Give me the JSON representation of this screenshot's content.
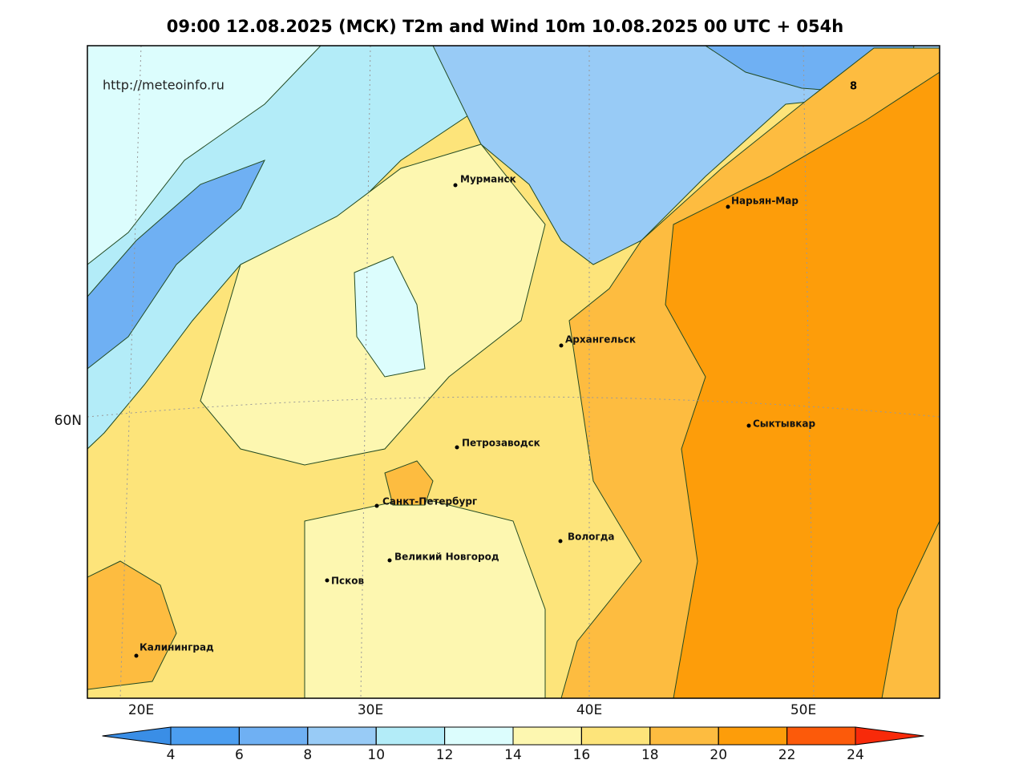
{
  "title": "09:00 12.08.2025 (МСК) T2m and Wind 10m 10.08.2025 00 UTC + 054h",
  "watermark": "http://meteoinfo.ru",
  "map": {
    "cities": [
      "Мурманск",
      "Нарьян-Мар",
      "Архангельск",
      "Сыктывкар",
      "Петрозаводск",
      "Санкт-Петербург",
      "Вологда",
      "Великий Новгород",
      "Псков",
      "Калининград"
    ],
    "lon_labels": [
      "20E",
      "30E",
      "40E",
      "50E"
    ],
    "lat_labels": [
      "60N"
    ],
    "contour_labels": [
      "8"
    ]
  },
  "colorbar": {
    "ticks": [
      4,
      6,
      8,
      10,
      12,
      14,
      16,
      18,
      20,
      22,
      24
    ],
    "colors": [
      "#3a8ee6",
      "#4c9ef0",
      "#6fb0f3",
      "#98cbf6",
      "#b3ecf8",
      "#dcfdfd",
      "#fdf7b0",
      "#fde47a",
      "#fdbc40",
      "#fd9d0a",
      "#fc5a0a",
      "#f82a0a"
    ]
  }
}
